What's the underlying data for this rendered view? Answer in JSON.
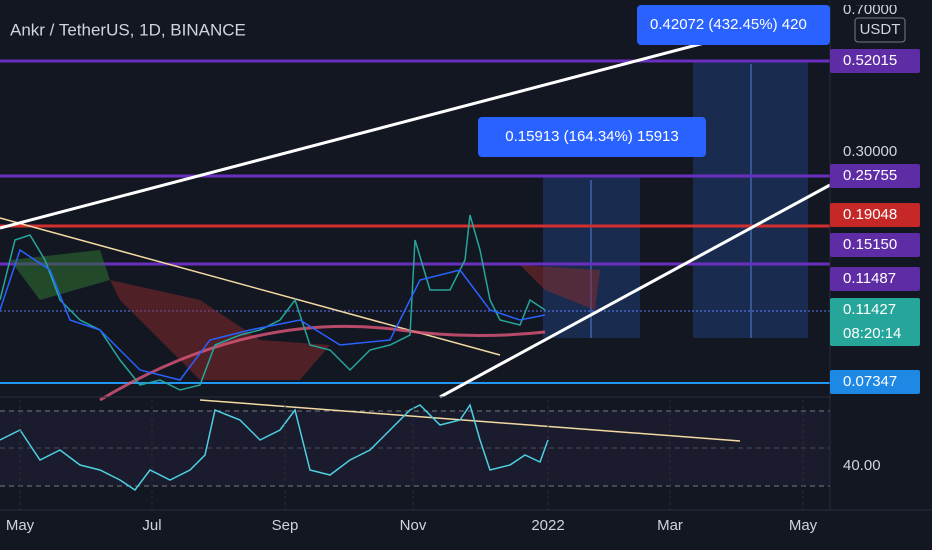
{
  "header": {
    "title": "Ankr / TetherUS, 1D, BINANCE"
  },
  "price_axis": {
    "ticks": [
      "0.70000",
      "0.30000"
    ],
    "currency": "USDT"
  },
  "price_labels": [
    {
      "text": "0.52015",
      "color": "#5e2ca5"
    },
    {
      "text": "0.25755",
      "color": "#5e2ca5"
    },
    {
      "text": "0.19048",
      "color": "#c62828"
    },
    {
      "text": "0.15150",
      "color": "#5e2ca5"
    },
    {
      "text": "0.11487",
      "color": "#5e2ca5"
    },
    {
      "text": "0.07347",
      "color": "#1e88e5"
    }
  ],
  "last_price": {
    "price": "0.11427",
    "countdown": "08:20:14"
  },
  "measures": [
    "0.15913 (164.34%) 15913",
    "0.42072 (432.45%) 420"
  ],
  "rsi_axis": {
    "tick": "40.00"
  },
  "time_axis": [
    "May",
    "Jul",
    "Sep",
    "Nov",
    "2022",
    "Mar",
    "May"
  ]
}
